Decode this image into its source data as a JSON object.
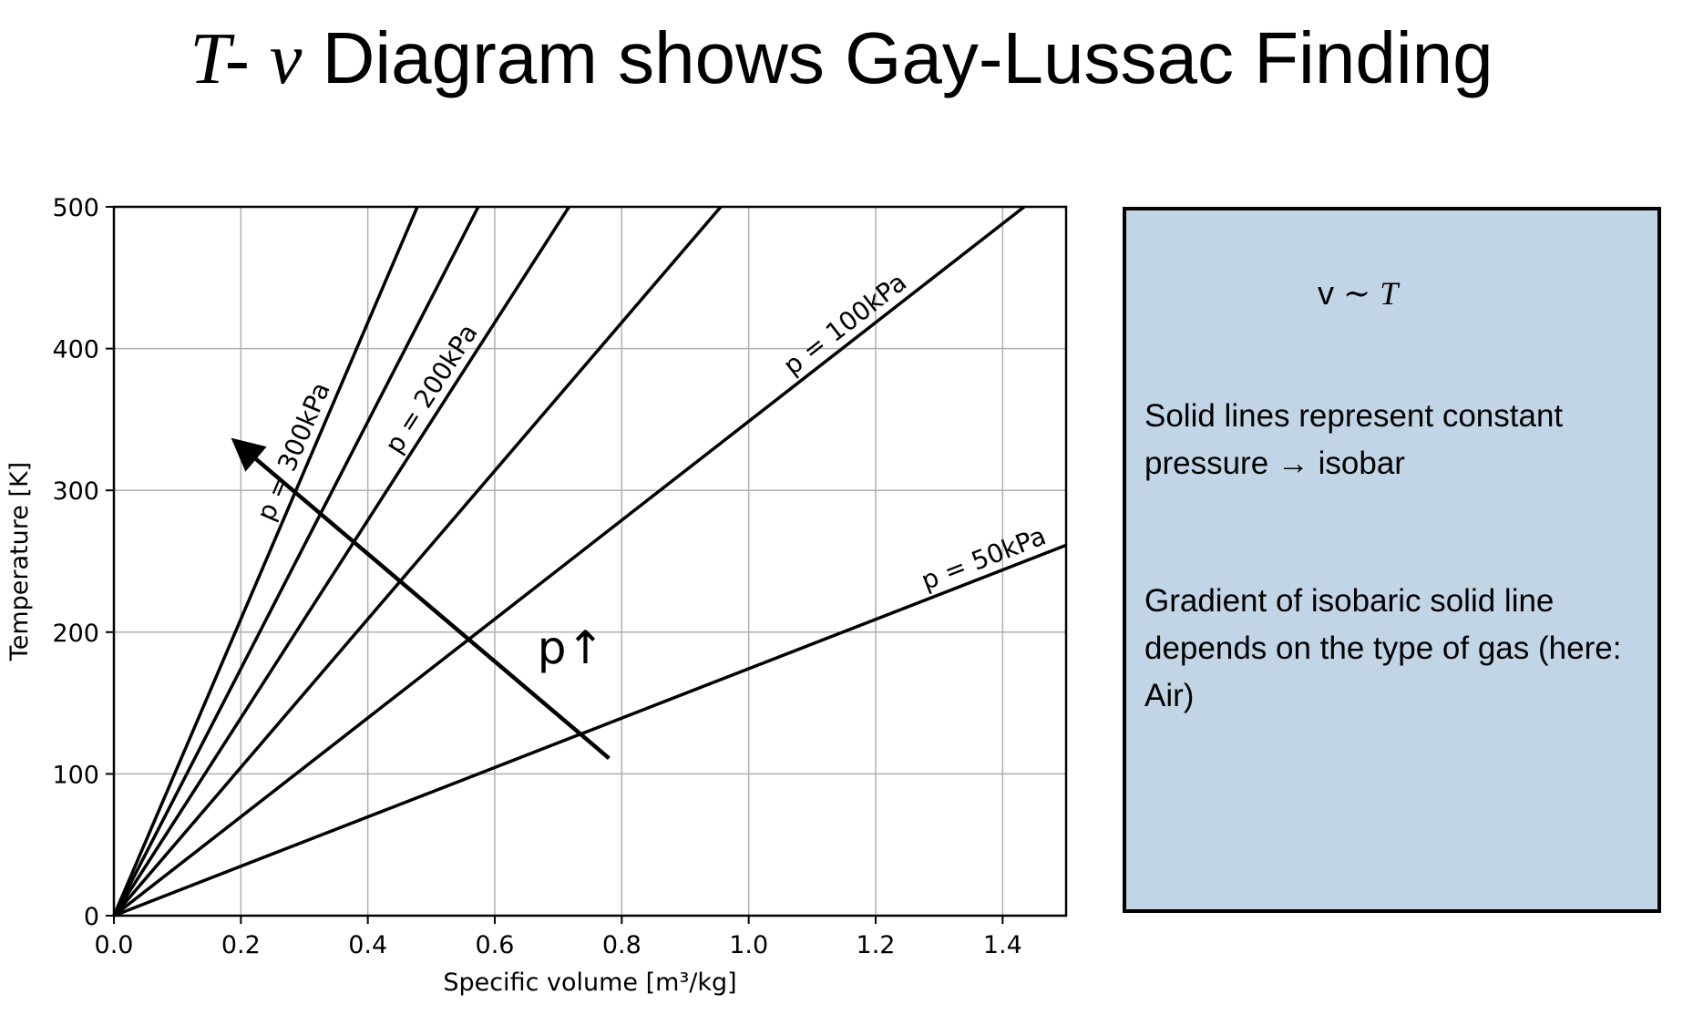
{
  "title": {
    "symbol_T": "T",
    "dash": "-",
    "symbol_v": "v",
    "text": "Diagram shows Gay-Lussac Finding"
  },
  "chart_data": {
    "type": "line",
    "xlabel": "Specific volume [m³/kg]",
    "ylabel": "Temperature [K]",
    "xlim": [
      0.0,
      1.5
    ],
    "ylim": [
      0,
      500
    ],
    "xticks": [
      "0.0",
      "0.2",
      "0.4",
      "0.6",
      "0.8",
      "1.0",
      "1.2",
      "1.4"
    ],
    "yticks": [
      "0",
      "100",
      "200",
      "300",
      "400",
      "500"
    ],
    "grid": true,
    "line_color": "#000000",
    "series": [
      {
        "name": "p = 50kPa",
        "x": [
          0,
          1.5
        ],
        "y": [
          0,
          261.3
        ],
        "label": "p = 50kPa"
      },
      {
        "x": [
          0,
          1.434
        ],
        "y": [
          0,
          500
        ],
        "label": "p = 100kPa"
      },
      {
        "x": [
          0,
          0.956
        ],
        "y": [
          0,
          500
        ],
        "label": ""
      },
      {
        "x": [
          0,
          0.717
        ],
        "y": [
          0,
          500
        ],
        "label": "p = 200kPa"
      },
      {
        "x": [
          0,
          0.574
        ],
        "y": [
          0,
          500
        ],
        "label": ""
      },
      {
        "x": [
          0,
          0.478
        ],
        "y": [
          0,
          500
        ],
        "label": "p = 300kPa"
      }
    ],
    "annotations": [
      {
        "type": "arrow",
        "from": [
          0.78,
          111
        ],
        "to": [
          0.195,
          333
        ],
        "text": "p↑",
        "text_at": [
          0.72,
          178
        ]
      }
    ]
  },
  "note_box": {
    "formula_v": "v",
    "formula_tilde": "~",
    "formula_T": "T",
    "line1": "Solid lines represent constant pressure → isobar",
    "line2": "Gradient of isobaric solid line depends on the type of gas (here: Air)",
    "background": "#c2d5e6"
  }
}
